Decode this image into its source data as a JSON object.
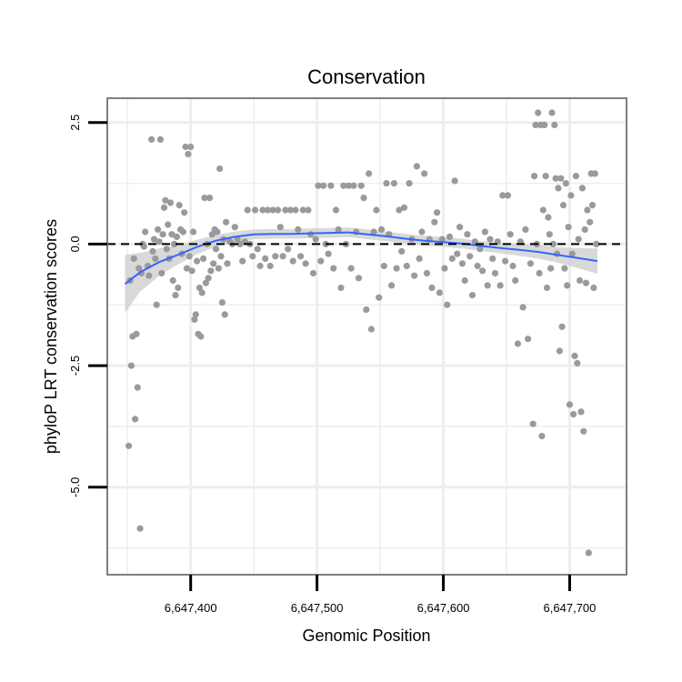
{
  "chart_data": {
    "type": "scatter",
    "title": "Conservation",
    "xlabel": "Genomic Position",
    "ylabel": "phyloP LRT conservation scores",
    "xlim": [
      6647334,
      6647745
    ],
    "ylim": [
      -6.8,
      3.0
    ],
    "x_ticks": [
      {
        "value": 6647400,
        "label": "6,647,400"
      },
      {
        "value": 6647500,
        "label": "6,647,500"
      },
      {
        "value": 6647600,
        "label": "6,647,600"
      },
      {
        "value": 6647700,
        "label": "6,647,700"
      }
    ],
    "y_ticks": [
      {
        "value": 2.5,
        "label": "2.5"
      },
      {
        "value": 0.0,
        "label": "0.0"
      },
      {
        "value": -2.5,
        "label": "-2.5"
      },
      {
        "value": -5.0,
        "label": "-5.0"
      }
    ],
    "reference_line": {
      "y": 0,
      "style": "dashed"
    },
    "grid": true,
    "colors": {
      "points": "#9a9a9a",
      "smooth": "#3366ff",
      "ribbon": "#cccccc",
      "grid": "#eeeeee",
      "frame": "#7f7f7f"
    },
    "points": [
      [
        6647351,
        -4.15
      ],
      [
        6647352,
        -0.75
      ],
      [
        6647353,
        -2.5
      ],
      [
        6647354,
        -1.9
      ],
      [
        6647355,
        -0.3
      ],
      [
        6647356,
        -3.6
      ],
      [
        6647357,
        -1.85
      ],
      [
        6647358,
        -2.95
      ],
      [
        6647359,
        -0.5
      ],
      [
        6647360,
        -5.85
      ],
      [
        6647361,
        -0.6
      ],
      [
        6647362,
        0.0
      ],
      [
        6647363,
        -0.05
      ],
      [
        6647364,
        0.25
      ],
      [
        6647366,
        -0.45
      ],
      [
        6647367,
        -0.65
      ],
      [
        6647369,
        2.15
      ],
      [
        6647370,
        -0.15
      ],
      [
        6647371,
        0.1
      ],
      [
        6647372,
        -0.3
      ],
      [
        6647373,
        -1.25
      ],
      [
        6647374,
        0.3
      ],
      [
        6647375,
        0.05
      ],
      [
        6647376,
        2.15
      ],
      [
        6647377,
        -0.6
      ],
      [
        6647378,
        0.2
      ],
      [
        6647379,
        0.75
      ],
      [
        6647380,
        0.9
      ],
      [
        6647381,
        -0.1
      ],
      [
        6647382,
        0.4
      ],
      [
        6647383,
        -0.3
      ],
      [
        6647384,
        0.85
      ],
      [
        6647385,
        0.2
      ],
      [
        6647386,
        -0.75
      ],
      [
        6647387,
        0.0
      ],
      [
        6647388,
        -1.05
      ],
      [
        6647389,
        0.15
      ],
      [
        6647390,
        -0.9
      ],
      [
        6647391,
        0.8
      ],
      [
        6647392,
        0.3
      ],
      [
        6647393,
        -0.2
      ],
      [
        6647394,
        0.25
      ],
      [
        6647395,
        0.65
      ],
      [
        6647396,
        2.0
      ],
      [
        6647397,
        -0.5
      ],
      [
        6647398,
        1.85
      ],
      [
        6647399,
        -0.25
      ],
      [
        6647400,
        2.0
      ],
      [
        6647401,
        -0.55
      ],
      [
        6647402,
        0.25
      ],
      [
        6647403,
        -1.55
      ],
      [
        6647404,
        -1.45
      ],
      [
        6647405,
        -0.35
      ],
      [
        6647406,
        -1.85
      ],
      [
        6647407,
        -0.9
      ],
      [
        6647408,
        -1.9
      ],
      [
        6647409,
        -1.0
      ],
      [
        6647410,
        -0.3
      ],
      [
        6647411,
        0.95
      ],
      [
        6647412,
        -0.8
      ],
      [
        6647413,
        0.0
      ],
      [
        6647414,
        -0.7
      ],
      [
        6647415,
        0.95
      ],
      [
        6647416,
        -0.55
      ],
      [
        6647417,
        0.2
      ],
      [
        6647418,
        -0.4
      ],
      [
        6647419,
        0.3
      ],
      [
        6647420,
        -0.1
      ],
      [
        6647421,
        0.25
      ],
      [
        6647422,
        -0.5
      ],
      [
        6647423,
        1.55
      ],
      [
        6647424,
        -0.25
      ],
      [
        6647425,
        -1.2
      ],
      [
        6647426,
        0.1
      ],
      [
        6647427,
        -1.45
      ],
      [
        6647428,
        0.45
      ],
      [
        6647429,
        -0.4
      ],
      [
        6647431,
        0.05
      ],
      [
        6647433,
        0.0
      ],
      [
        6647435,
        0.35
      ],
      [
        6647437,
        0.1
      ],
      [
        6647439,
        0.0
      ],
      [
        6647441,
        -0.35
      ],
      [
        6647443,
        0.05
      ],
      [
        6647445,
        0.7
      ],
      [
        6647447,
        0.0
      ],
      [
        6647449,
        -0.25
      ],
      [
        6647451,
        0.7
      ],
      [
        6647453,
        -0.1
      ],
      [
        6647455,
        -0.45
      ],
      [
        6647457,
        0.7
      ],
      [
        6647459,
        -0.3
      ],
      [
        6647461,
        0.7
      ],
      [
        6647463,
        -0.45
      ],
      [
        6647465,
        0.7
      ],
      [
        6647467,
        -0.25
      ],
      [
        6647469,
        0.7
      ],
      [
        6647471,
        0.35
      ],
      [
        6647473,
        -0.25
      ],
      [
        6647475,
        0.7
      ],
      [
        6647477,
        -0.1
      ],
      [
        6647479,
        0.7
      ],
      [
        6647481,
        -0.35
      ],
      [
        6647483,
        0.7
      ],
      [
        6647485,
        0.3
      ],
      [
        6647487,
        -0.25
      ],
      [
        6647489,
        0.7
      ],
      [
        6647491,
        -0.4
      ],
      [
        6647493,
        0.7
      ],
      [
        6647495,
        0.2
      ],
      [
        6647497,
        -0.6
      ],
      [
        6647499,
        0.1
      ],
      [
        6647501,
        1.2
      ],
      [
        6647503,
        -0.35
      ],
      [
        6647505,
        1.2
      ],
      [
        6647507,
        0.0
      ],
      [
        6647509,
        -0.2
      ],
      [
        6647511,
        1.2
      ],
      [
        6647513,
        -0.5
      ],
      [
        6647515,
        0.7
      ],
      [
        6647517,
        0.3
      ],
      [
        6647519,
        -0.9
      ],
      [
        6647521,
        1.2
      ],
      [
        6647523,
        0.0
      ],
      [
        6647525,
        1.2
      ],
      [
        6647527,
        -0.5
      ],
      [
        6647529,
        1.2
      ],
      [
        6647531,
        0.25
      ],
      [
        6647533,
        -0.7
      ],
      [
        6647535,
        1.2
      ],
      [
        6647537,
        0.95
      ],
      [
        6647539,
        -1.35
      ],
      [
        6647541,
        1.45
      ],
      [
        6647543,
        -1.75
      ],
      [
        6647545,
        0.25
      ],
      [
        6647547,
        0.7
      ],
      [
        6647549,
        -1.1
      ],
      [
        6647551,
        0.3
      ],
      [
        6647553,
        -0.45
      ],
      [
        6647555,
        1.25
      ],
      [
        6647557,
        0.2
      ],
      [
        6647559,
        -0.85
      ],
      [
        6647561,
        1.25
      ],
      [
        6647563,
        -0.5
      ],
      [
        6647565,
        0.7
      ],
      [
        6647567,
        -0.15
      ],
      [
        6647569,
        0.75
      ],
      [
        6647571,
        -0.45
      ],
      [
        6647573,
        1.25
      ],
      [
        6647575,
        0.1
      ],
      [
        6647577,
        -0.65
      ],
      [
        6647579,
        1.6
      ],
      [
        6647581,
        -0.3
      ],
      [
        6647583,
        0.25
      ],
      [
        6647585,
        1.45
      ],
      [
        6647587,
        -0.6
      ],
      [
        6647589,
        0.1
      ],
      [
        6647591,
        -0.9
      ],
      [
        6647593,
        0.45
      ],
      [
        6647595,
        0.65
      ],
      [
        6647597,
        -1.0
      ],
      [
        6647599,
        0.1
      ],
      [
        6647601,
        -0.5
      ],
      [
        6647603,
        -1.25
      ],
      [
        6647605,
        0.15
      ],
      [
        6647607,
        -0.3
      ],
      [
        6647609,
        1.3
      ],
      [
        6647611,
        -0.2
      ],
      [
        6647613,
        0.35
      ],
      [
        6647615,
        -0.4
      ],
      [
        6647617,
        -0.75
      ],
      [
        6647619,
        0.2
      ],
      [
        6647621,
        -0.25
      ],
      [
        6647623,
        -1.05
      ],
      [
        6647625,
        0.05
      ],
      [
        6647627,
        -0.45
      ],
      [
        6647629,
        -0.1
      ],
      [
        6647631,
        -0.55
      ],
      [
        6647633,
        0.25
      ],
      [
        6647635,
        -0.85
      ],
      [
        6647637,
        0.1
      ],
      [
        6647639,
        -0.3
      ],
      [
        6647641,
        -0.6
      ],
      [
        6647643,
        0.05
      ],
      [
        6647645,
        -0.85
      ],
      [
        6647647,
        1.0
      ],
      [
        6647649,
        -0.35
      ],
      [
        6647651,
        1.0
      ],
      [
        6647653,
        0.2
      ],
      [
        6647655,
        -0.45
      ],
      [
        6647657,
        -0.75
      ],
      [
        6647659,
        -2.05
      ],
      [
        6647661,
        0.05
      ],
      [
        6647663,
        -1.3
      ],
      [
        6647665,
        0.3
      ],
      [
        6647667,
        -1.95
      ],
      [
        6647669,
        -0.4
      ],
      [
        6647671,
        -3.7
      ],
      [
        6647672,
        1.4
      ],
      [
        6647673,
        2.45
      ],
      [
        6647674,
        0.0
      ],
      [
        6647675,
        2.7
      ],
      [
        6647676,
        -0.6
      ],
      [
        6647677,
        2.45
      ],
      [
        6647678,
        -3.95
      ],
      [
        6647679,
        0.7
      ],
      [
        6647680,
        2.45
      ],
      [
        6647681,
        1.4
      ],
      [
        6647682,
        -0.9
      ],
      [
        6647683,
        0.55
      ],
      [
        6647684,
        0.2
      ],
      [
        6647685,
        -0.5
      ],
      [
        6647686,
        2.7
      ],
      [
        6647687,
        0.0
      ],
      [
        6647688,
        2.45
      ],
      [
        6647689,
        1.35
      ],
      [
        6647690,
        -0.2
      ],
      [
        6647691,
        1.15
      ],
      [
        6647692,
        -2.2
      ],
      [
        6647693,
        1.35
      ],
      [
        6647694,
        -1.7
      ],
      [
        6647695,
        0.8
      ],
      [
        6647696,
        -0.5
      ],
      [
        6647697,
        1.25
      ],
      [
        6647698,
        -0.85
      ],
      [
        6647699,
        0.35
      ],
      [
        6647700,
        -3.3
      ],
      [
        6647701,
        1.0
      ],
      [
        6647702,
        -0.2
      ],
      [
        6647703,
        -3.5
      ],
      [
        6647704,
        -2.3
      ],
      [
        6647705,
        1.4
      ],
      [
        6647706,
        -2.45
      ],
      [
        6647707,
        0.1
      ],
      [
        6647708,
        -0.75
      ],
      [
        6647709,
        -3.45
      ],
      [
        6647710,
        1.15
      ],
      [
        6647711,
        -3.85
      ],
      [
        6647712,
        0.3
      ],
      [
        6647713,
        -0.8
      ],
      [
        6647714,
        0.7
      ],
      [
        6647715,
        -6.35
      ],
      [
        6647716,
        0.45
      ],
      [
        6647717,
        1.45
      ],
      [
        6647718,
        0.8
      ],
      [
        6647719,
        -0.9
      ],
      [
        6647720,
        1.45
      ],
      [
        6647721,
        0.0
      ]
    ],
    "smooth": [
      [
        6647348,
        -0.82
      ],
      [
        6647360,
        -0.58
      ],
      [
        6647375,
        -0.37
      ],
      [
        6647390,
        -0.22
      ],
      [
        6647405,
        -0.06
      ],
      [
        6647420,
        0.07
      ],
      [
        6647435,
        0.15
      ],
      [
        6647450,
        0.2
      ],
      [
        6647465,
        0.21
      ],
      [
        6647480,
        0.21
      ],
      [
        6647495,
        0.22
      ],
      [
        6647510,
        0.23
      ],
      [
        6647525,
        0.24
      ],
      [
        6647540,
        0.2
      ],
      [
        6647555,
        0.16
      ],
      [
        6647570,
        0.11
      ],
      [
        6647585,
        0.07
      ],
      [
        6647600,
        0.04
      ],
      [
        6647615,
        0.01
      ],
      [
        6647630,
        -0.04
      ],
      [
        6647645,
        -0.08
      ],
      [
        6647660,
        -0.12
      ],
      [
        6647675,
        -0.16
      ],
      [
        6647690,
        -0.22
      ],
      [
        6647705,
        -0.28
      ],
      [
        6647722,
        -0.35
      ]
    ],
    "ribbon_halfwidth": [
      0.6,
      0.4,
      0.28,
      0.2,
      0.15,
      0.12,
      0.11,
      0.1,
      0.1,
      0.1,
      0.1,
      0.1,
      0.1,
      0.1,
      0.1,
      0.1,
      0.1,
      0.1,
      0.1,
      0.1,
      0.11,
      0.12,
      0.14,
      0.16,
      0.2,
      0.26
    ]
  }
}
